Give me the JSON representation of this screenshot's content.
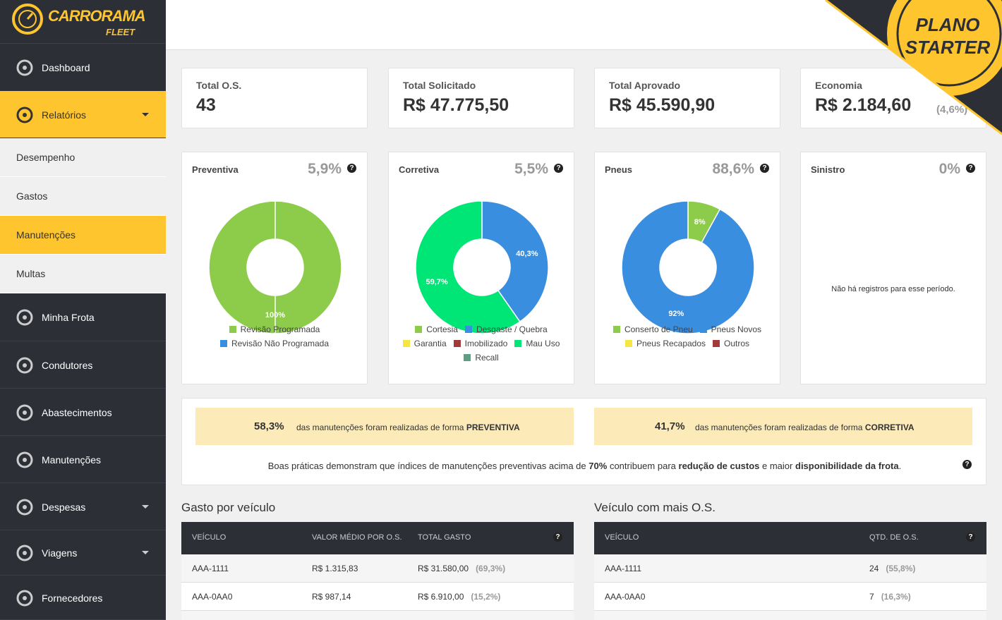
{
  "brand": {
    "name": "CARRORAMA",
    "sub": "FLEET"
  },
  "plan": {
    "line1": "PLANO",
    "line2": "STARTER"
  },
  "sidebar": {
    "items": [
      {
        "label": "Dashboard"
      },
      {
        "label": "Relatórios",
        "active": true,
        "caret": true,
        "children": [
          "Desempenho",
          "Gastos",
          "Manutenções",
          "Multas"
        ],
        "active_child": 2
      },
      {
        "label": "Minha Frota"
      },
      {
        "label": "Condutores"
      },
      {
        "label": "Abastecimentos"
      },
      {
        "label": "Manutenções"
      },
      {
        "label": "Despesas",
        "caret": true
      },
      {
        "label": "Viagens",
        "caret": true
      },
      {
        "label": "Fornecedores"
      }
    ]
  },
  "stats": [
    {
      "label": "Total O.S.",
      "value": "43"
    },
    {
      "label": "Total Solicitado",
      "value": "R$ 47.775,50"
    },
    {
      "label": "Total Aprovado",
      "value": "R$ 45.590,90"
    },
    {
      "label": "Economia",
      "value": "R$ 2.184,60",
      "note": "(4,6%)"
    }
  ],
  "charts": [
    {
      "type": "pie",
      "title": "Preventiva",
      "share": "5,9%",
      "categories": [
        "Revisão Programada",
        "Revisão Não Programada"
      ],
      "colors": [
        "#8dcc4a",
        "#3a8ee0"
      ],
      "values": [
        100,
        0
      ],
      "value_labels": [
        "100%",
        null
      ]
    },
    {
      "type": "pie",
      "title": "Corretiva",
      "share": "5,5%",
      "categories": [
        "Cortesia",
        "Desgaste / Quebra",
        "Garantia",
        "Imobilizado",
        "Mau Uso",
        "Recall"
      ],
      "colors": [
        "#8dcc4a",
        "#3a8ee0",
        "#f5e642",
        "#a33a3a",
        "#00e676",
        "#5f9e85"
      ],
      "values": [
        0,
        40.3,
        0,
        0,
        59.7,
        0
      ],
      "value_labels": [
        null,
        "40,3%",
        null,
        null,
        "59,7%",
        null
      ]
    },
    {
      "type": "pie",
      "title": "Pneus",
      "share": "88,6%",
      "categories": [
        "Conserto de Pneu",
        "Pneus Novos",
        "Pneus Recapados",
        "Outros"
      ],
      "colors": [
        "#8dcc4a",
        "#3a8ee0",
        "#f5e642",
        "#a33a3a"
      ],
      "values": [
        8,
        92,
        0,
        0
      ],
      "value_labels": [
        "8%",
        "92%",
        null,
        null
      ]
    },
    {
      "type": "pie",
      "title": "Sinistro",
      "share": "0%",
      "empty_message": "Não há registros para esse período."
    }
  ],
  "summary": {
    "banners": [
      {
        "percent": "58,3%",
        "text": "das manutenções foram realizadas de forma",
        "emphasis": "PREVENTIVA"
      },
      {
        "percent": "41,7%",
        "text": "das manutenções foram realizadas de forma",
        "emphasis": "CORRETIVA"
      }
    ],
    "tip": [
      {
        "text": "Boas práticas demonstram que índices de manutenções preventivas acima de",
        "bold": false
      },
      {
        "text": "70%",
        "bold": true
      },
      {
        "text": "contribuem para",
        "bold": false
      },
      {
        "text": "redução de custos",
        "bold": true
      },
      {
        "text": "e maior",
        "bold": false
      },
      {
        "text": "disponibilidade da frota",
        "bold": true
      },
      {
        "text": ".",
        "bold": false
      }
    ]
  },
  "tables": [
    {
      "title": "Gasto por veículo",
      "columns": [
        "VEÍCULO",
        "VALOR MÉDIO POR O.S.",
        "TOTAL GASTO"
      ],
      "rows": [
        [
          "AAA-1111",
          "R$ 1.315,83",
          "R$ 31.580,00",
          "(69,3%)"
        ],
        [
          "AAA-0AA0",
          "R$ 987,14",
          "R$ 6.910,00",
          "(15,2%)"
        ]
      ]
    },
    {
      "title": "Veículo com mais O.S.",
      "columns": [
        "VEÍCULO",
        "QTD. DE O.S."
      ],
      "rows": [
        [
          "AAA-1111",
          "24",
          "(55,8%)"
        ],
        [
          "AAA-0AA0",
          "7",
          "(16,3%)"
        ]
      ]
    }
  ]
}
